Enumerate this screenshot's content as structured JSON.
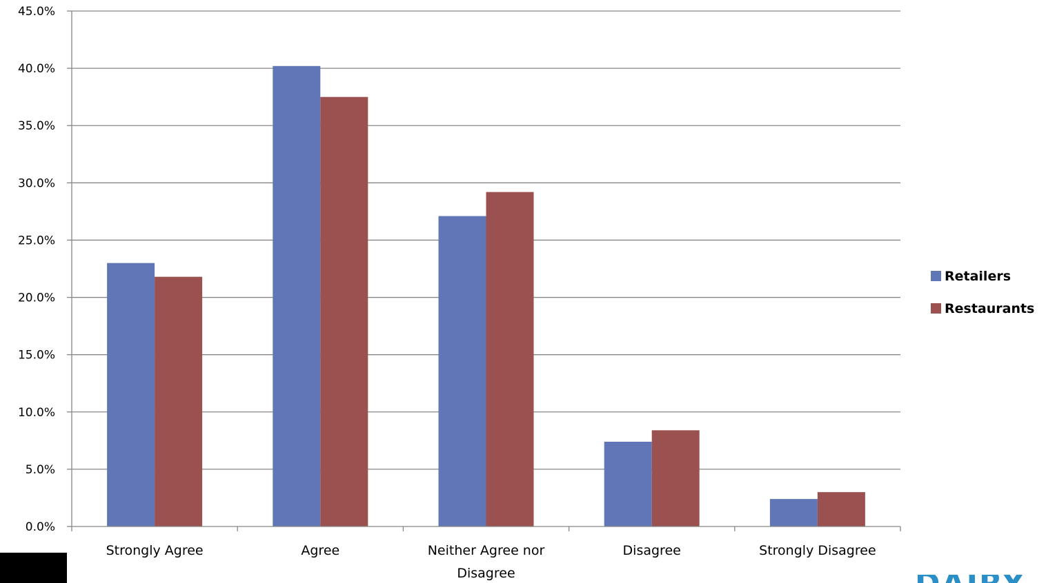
{
  "chart_data": {
    "type": "bar",
    "title": "",
    "xlabel": "",
    "ylabel": "",
    "categories": [
      [
        "Strongly Agree"
      ],
      [
        "Agree"
      ],
      [
        "Neither Agree nor",
        "Disagree"
      ],
      [
        "Disagree"
      ],
      [
        "Strongly Disagree"
      ]
    ],
    "series": [
      {
        "name": "Retailers",
        "color": "#6176b6",
        "values": [
          23.0,
          40.2,
          27.1,
          7.4,
          2.4
        ]
      },
      {
        "name": "Restaurants",
        "color": "#9c5151",
        "values": [
          21.8,
          37.5,
          29.2,
          8.4,
          3.0
        ]
      }
    ],
    "ylim": [
      0,
      45
    ],
    "yticks": [
      "0.0%",
      "5.0%",
      "10.0%",
      "15.0%",
      "20.0%",
      "25.0%",
      "30.0%",
      "35.0%",
      "40.0%",
      "45.0%"
    ],
    "grid": true,
    "legend_position": "right"
  },
  "footer": {
    "logo_text": "DAIRY"
  }
}
